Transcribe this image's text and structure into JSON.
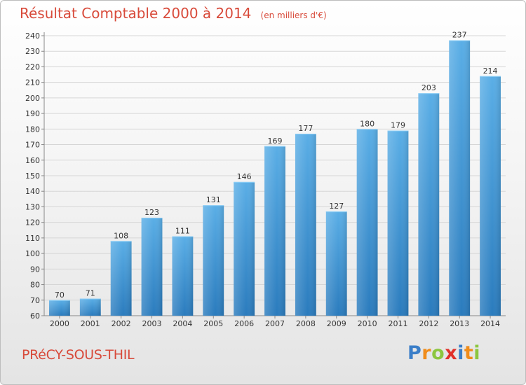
{
  "header": {
    "title": "Résultat Comptable 2000 à 2014",
    "subtitle": "(en milliers d'€)"
  },
  "footer": {
    "commune": "PRéCY-SOUS-THIL",
    "brand_letters": [
      {
        "char": "P",
        "color": "#3a7ec8"
      },
      {
        "char": "r",
        "color": "#f08c1a"
      },
      {
        "char": "o",
        "color": "#8cc63f"
      },
      {
        "char": "x",
        "color": "#e0312a"
      },
      {
        "char": "i",
        "color": "#3a7ec8"
      },
      {
        "char": "t",
        "color": "#f08c1a"
      },
      {
        "char": "i",
        "color": "#8cc63f"
      }
    ]
  },
  "chart_data": {
    "type": "bar",
    "title": "Résultat Comptable 2000 à 2014",
    "subtitle": "(en milliers d'€)",
    "categories": [
      "2000",
      "2001",
      "2002",
      "2003",
      "2004",
      "2005",
      "2006",
      "2007",
      "2008",
      "2009",
      "2010",
      "2011",
      "2012",
      "2013",
      "2014"
    ],
    "values": [
      70,
      71,
      108,
      123,
      111,
      131,
      146,
      169,
      177,
      127,
      180,
      179,
      203,
      237,
      214
    ],
    "ylim": [
      60,
      240
    ],
    "yticks": [
      60,
      70,
      80,
      90,
      100,
      110,
      120,
      130,
      140,
      150,
      160,
      170,
      180,
      190,
      200,
      210,
      220,
      230,
      240
    ],
    "grid": true,
    "bar_color_top": "#5aaee6",
    "bar_color_bottom": "#2a7bbd"
  }
}
